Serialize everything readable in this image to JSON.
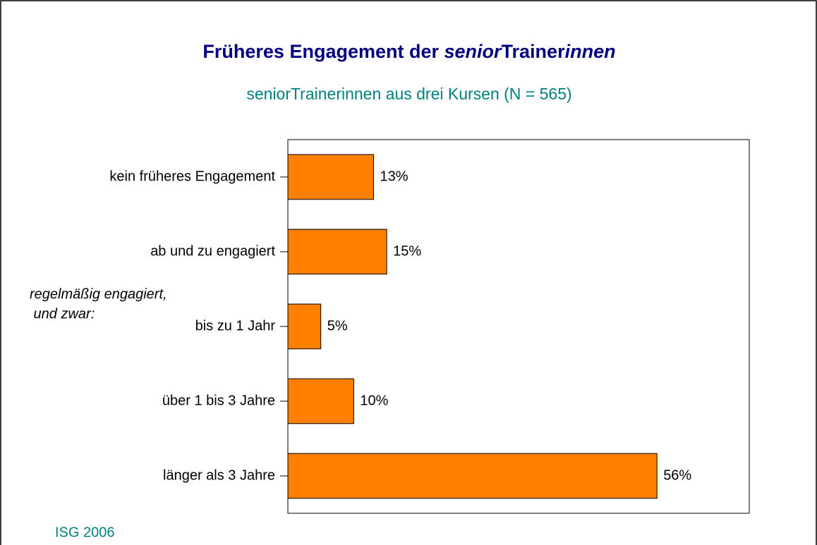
{
  "chart_data": {
    "type": "bar",
    "orientation": "horizontal",
    "title": [
      "Früheres Engagement der ",
      "senior",
      "Trainer",
      "innen"
    ],
    "subtitle": "seniorTrainerinnen aus drei Kursen (N = 565)",
    "annotation": [
      "regelmäßig engagiert,",
      " und zwar:"
    ],
    "source": "ISG 2006",
    "categories": [
      "kein früheres Engagement",
      "ab und zu engagiert",
      "bis zu 1 Jahr",
      "über 1 bis 3 Jahre",
      "länger als 3 Jahre"
    ],
    "values": [
      13,
      15,
      5,
      10,
      56
    ],
    "value_labels": [
      "13%",
      "15%",
      "5%",
      "10%",
      "56%"
    ],
    "color": "#ff8000",
    "xlim": [
      0,
      70
    ]
  }
}
